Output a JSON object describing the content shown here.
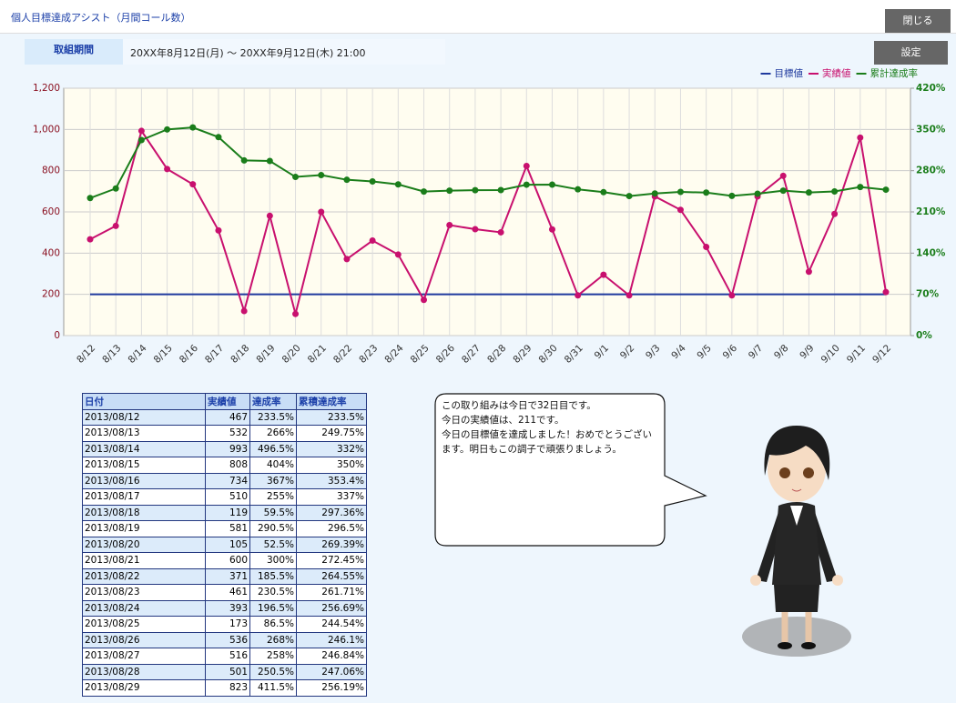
{
  "header": {
    "title": "個人目標達成アシスト（月間コール数）",
    "close_button": "閉じる"
  },
  "period": {
    "label": "取組期間",
    "text": "20XX年8月12日(月) ～ 20XX年9月12日(木) 21:00",
    "settings_button": "設定"
  },
  "chart_data": {
    "type": "line",
    "categories": [
      "8/12",
      "8/13",
      "8/14",
      "8/15",
      "8/16",
      "8/17",
      "8/18",
      "8/19",
      "8/20",
      "8/21",
      "8/22",
      "8/23",
      "8/24",
      "8/25",
      "8/26",
      "8/27",
      "8/28",
      "8/29",
      "8/30",
      "8/31",
      "9/1",
      "9/2",
      "9/3",
      "9/4",
      "9/5",
      "9/6",
      "9/7",
      "9/8",
      "9/9",
      "9/10",
      "9/11",
      "9/12"
    ],
    "series": [
      {
        "name": "目標値",
        "color": "#1f3a9e",
        "markers": false,
        "values": [
          200,
          200,
          200,
          200,
          200,
          200,
          200,
          200,
          200,
          200,
          200,
          200,
          200,
          200,
          200,
          200,
          200,
          200,
          200,
          200,
          200,
          200,
          200,
          200,
          200,
          200,
          200,
          200,
          200,
          200,
          200,
          200
        ]
      },
      {
        "name": "実績値",
        "color": "#c8106e",
        "markers": true,
        "values": [
          467,
          532,
          993,
          808,
          734,
          510,
          119,
          581,
          105,
          600,
          371,
          461,
          393,
          173,
          536,
          516,
          501,
          823,
          515,
          195,
          295,
          195,
          675,
          610,
          430,
          195,
          675,
          775,
          310,
          590,
          960,
          211
        ]
      },
      {
        "name": "累計達成率",
        "color": "#1a7d1a",
        "markers": true,
        "axis": "y2",
        "values": [
          233.5,
          249.75,
          332,
          350,
          353.4,
          337,
          297.36,
          296.5,
          269.39,
          272.45,
          264.55,
          261.71,
          256.69,
          244.54,
          246.1,
          246.84,
          247.06,
          256.19,
          256.26,
          248.33,
          243.52,
          236.89,
          241.26,
          243.92,
          242.76,
          237.17,
          240.89,
          246.13,
          242.98,
          244.72,
          252.31,
          247.72
        ]
      }
    ],
    "ylim": [
      0,
      1200
    ],
    "yticks": [
      0,
      200,
      400,
      600,
      800,
      {
        "value": 1000,
        "label": "1,000"
      },
      {
        "value": 1200,
        "label": "1,200"
      }
    ],
    "y2lim": [
      0,
      420
    ],
    "y2ticks": [
      {
        "value": 0,
        "label": "0%"
      },
      {
        "value": 70,
        "label": "70%"
      },
      {
        "value": 140,
        "label": "140%"
      },
      {
        "value": 210,
        "label": "210%"
      },
      {
        "value": 280,
        "label": "280%"
      },
      {
        "value": 350,
        "label": "350%"
      },
      {
        "value": 420,
        "label": "420%"
      }
    ],
    "grid": true,
    "legend": "top-right"
  },
  "table": {
    "header": [
      "日付",
      "実績値",
      "達成率",
      "累積達成率"
    ],
    "rows": [
      [
        "2013/08/12",
        "467",
        "233.5%",
        "233.5%"
      ],
      [
        "2013/08/13",
        "532",
        "266%",
        "249.75%"
      ],
      [
        "2013/08/14",
        "993",
        "496.5%",
        "332%"
      ],
      [
        "2013/08/15",
        "808",
        "404%",
        "350%"
      ],
      [
        "2013/08/16",
        "734",
        "367%",
        "353.4%"
      ],
      [
        "2013/08/17",
        "510",
        "255%",
        "337%"
      ],
      [
        "2013/08/18",
        "119",
        "59.5%",
        "297.36%"
      ],
      [
        "2013/08/19",
        "581",
        "290.5%",
        "296.5%"
      ],
      [
        "2013/08/20",
        "105",
        "52.5%",
        "269.39%"
      ],
      [
        "2013/08/21",
        "600",
        "300%",
        "272.45%"
      ],
      [
        "2013/08/22",
        "371",
        "185.5%",
        "264.55%"
      ],
      [
        "2013/08/23",
        "461",
        "230.5%",
        "261.71%"
      ],
      [
        "2013/08/24",
        "393",
        "196.5%",
        "256.69%"
      ],
      [
        "2013/08/25",
        "173",
        "86.5%",
        "244.54%"
      ],
      [
        "2013/08/26",
        "536",
        "268%",
        "246.1%"
      ],
      [
        "2013/08/27",
        "516",
        "258%",
        "246.84%"
      ],
      [
        "2013/08/28",
        "501",
        "250.5%",
        "247.06%"
      ],
      [
        "2013/08/29",
        "823",
        "411.5%",
        "256.19%"
      ]
    ]
  },
  "message": {
    "lines": [
      "この取り組みは今日で32日目です。",
      "今日の実績値は、211です。",
      "今日の目標値を達成しました！おめでとうございます。明日もこの調子で頑張りましょう。"
    ]
  }
}
